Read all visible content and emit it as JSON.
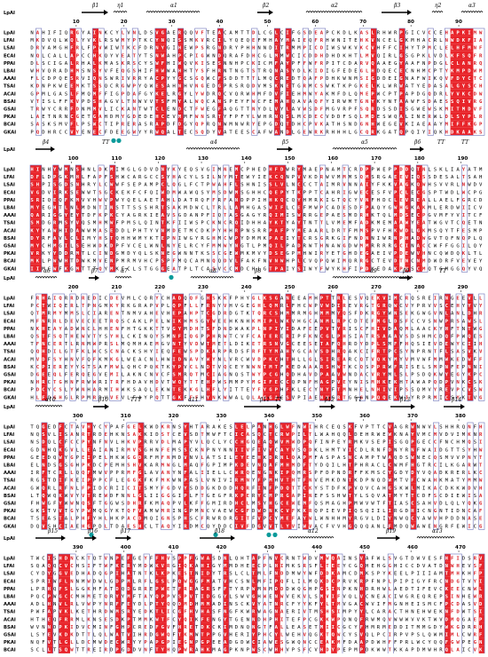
{
  "colors": {
    "identical_bg": "#e8242a",
    "identical_fg": "#ffffff",
    "similar_fg": "#d8232a",
    "box": "#6d72b8",
    "dot": "#0a9a9a",
    "text": "#000000"
  },
  "reference_label": "LpAI",
  "sequences": [
    "LpAI",
    "LFAI",
    "LSAI",
    "ECAI",
    "PPAI",
    "LBAI",
    "AAAI",
    "TSAI",
    "ACAI",
    "BSAI",
    "GSAI",
    "PKAI",
    "BCAI",
    "GKAI"
  ],
  "blocks": [
    {
      "secondary": [
        {
          "type": "label",
          "text": "1"
        },
        {
          "type": "arrow",
          "label": "β1"
        },
        {
          "type": "helix",
          "label": "η1"
        },
        {
          "type": "helix",
          "label": "α1"
        },
        {
          "type": "arrow",
          "label": "β2"
        },
        {
          "type": "helix",
          "label": "α2"
        },
        {
          "type": "arrow",
          "label": "β3"
        },
        {
          "type": "helix",
          "label": "η2"
        },
        {
          "type": "helix",
          "label": "α3"
        }
      ],
      "ticks": [
        "10",
        "20",
        "30",
        "40",
        "50",
        "60",
        "70",
        "80",
        "90"
      ],
      "dots": 2
    },
    {
      "secondary": [
        {
          "type": "arrow",
          "label": "β4"
        },
        {
          "type": "turn",
          "label": "TT"
        },
        {
          "type": "helix",
          "label": "α4"
        },
        {
          "type": "arrow",
          "label": "β5"
        },
        {
          "type": "helix",
          "label": "α5"
        },
        {
          "type": "arrow",
          "label": "β6"
        },
        {
          "type": "turn",
          "label": "TT"
        },
        {
          "type": "turn",
          "label": "TT"
        }
      ],
      "ticks": [
        "100",
        "110",
        "120",
        "130",
        "140",
        "150",
        "160",
        "170",
        "180",
        "190"
      ],
      "dots": 2
    },
    {
      "secondary": [
        {
          "type": "helix",
          "label": "α6"
        },
        {
          "type": "arrow",
          "label": "β7"
        },
        {
          "type": "helix",
          "label": "α7"
        },
        {
          "type": "helix",
          "label": "α8"
        },
        {
          "type": "arrow",
          "label": "β8"
        },
        {
          "type": "helix",
          "label": "α9"
        },
        {
          "type": "arrow",
          "label": "β9"
        },
        {
          "type": "turn",
          "label": "TT"
        }
      ],
      "ticks": [
        "200",
        "210",
        "220",
        "230",
        "240",
        "250",
        "260",
        "270",
        "280",
        "290"
      ],
      "dots": 0
    },
    {
      "secondary": [
        {
          "type": "helix",
          "label": "α10"
        },
        {
          "type": "arrow",
          "label": "β10"
        },
        {
          "type": "turn",
          "label": "TTT"
        },
        {
          "type": "helix",
          "label": "α11"
        },
        {
          "type": "arrow",
          "label": "β11"
        },
        {
          "type": "turn",
          "label": "TT"
        },
        {
          "type": "arrow",
          "label": "β12"
        },
        {
          "type": "turn",
          "label": "TT"
        },
        {
          "type": "arrow",
          "label": "β13"
        },
        {
          "type": "arrow",
          "label": "β14"
        }
      ],
      "ticks": [
        "300",
        "310",
        "320",
        "330",
        "340",
        "350",
        "360",
        "370",
        "380"
      ],
      "dots": 4
    },
    {
      "secondary": [
        {
          "type": "arrow",
          "label": "β15"
        },
        {
          "type": "arrow",
          "label": "β16"
        },
        {
          "type": "arrow",
          "label": "β17"
        },
        {
          "type": "arrow",
          "label": "β18"
        },
        {
          "type": "helix",
          "label": "α12"
        },
        {
          "type": "arrow",
          "label": "β19"
        },
        {
          "type": "helix",
          "label": "α13"
        }
      ],
      "ticks": [
        "390",
        "400",
        "410",
        "420",
        "430",
        "440",
        "450",
        "460",
        "470"
      ],
      "dots": 1
    }
  ]
}
